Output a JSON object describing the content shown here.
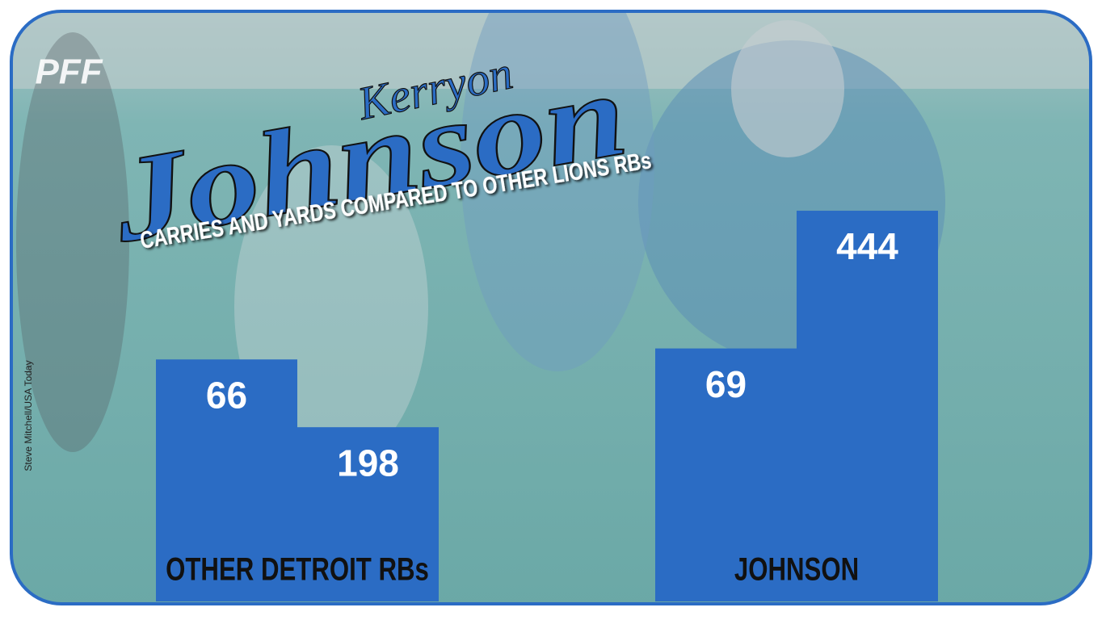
{
  "chart_data": {
    "type": "bar",
    "logo": "PFF",
    "title_lines": [
      "Kerryon",
      "Johnson"
    ],
    "subtitle": "CARRIES AND YARDS COMPARED TO OTHER LIONS RBs",
    "credit": "Steve Mitchell/USA Today",
    "categories": [
      "OTHER DETROIT RBs",
      "JOHNSON"
    ],
    "series": [
      {
        "color": "#2b6cc4",
        "values": [
          66,
          69
        ]
      },
      {
        "color": "#2b6cc4",
        "values": [
          198,
          444
        ],
        "axis": "y2"
      }
    ],
    "ylim": [
      0,
      120
    ],
    "y2lim": [
      0,
      500
    ]
  }
}
